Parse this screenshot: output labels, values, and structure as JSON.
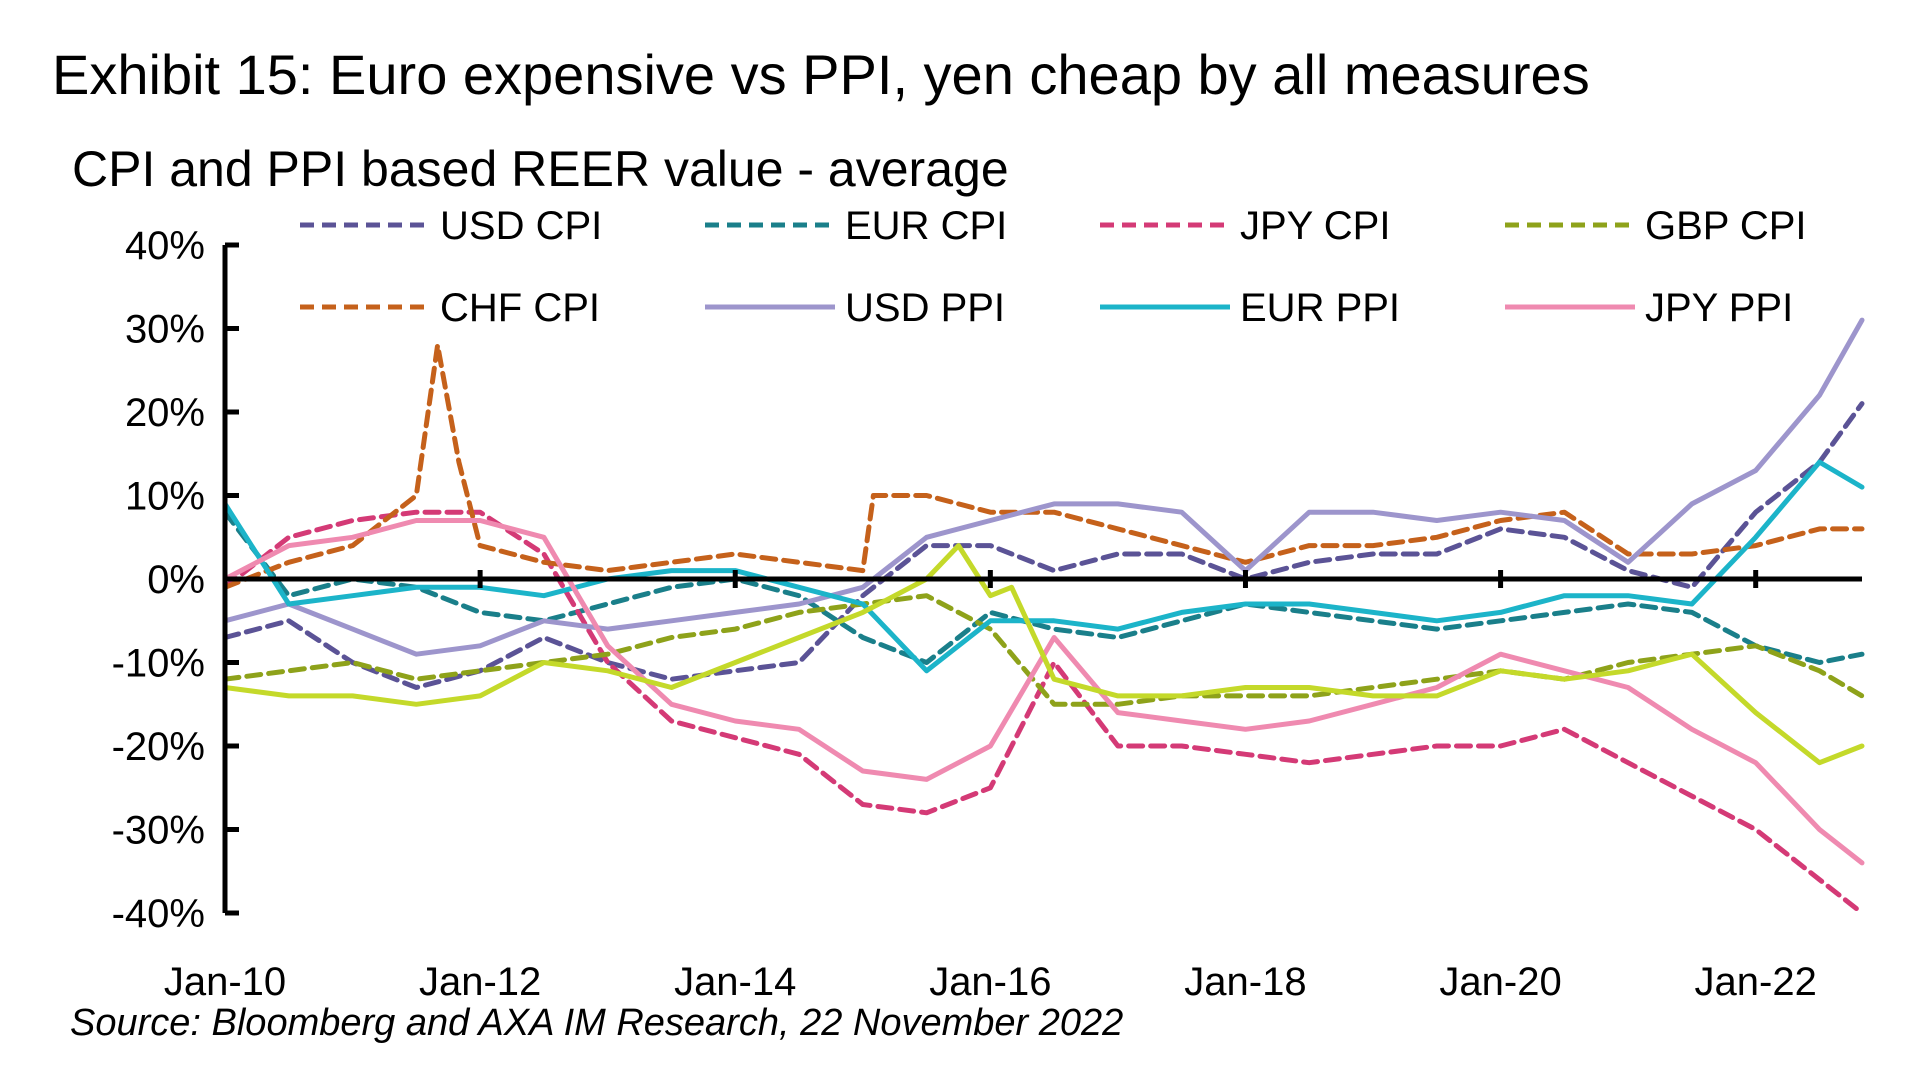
{
  "title": "Exhibit 15: Euro expensive vs PPI, yen cheap by all measures",
  "subtitle": "CPI and PPI based REER value - average",
  "source": "Source: Bloomberg and AXA IM Research, 22 November 2022",
  "chart_data": {
    "type": "line",
    "ylim": [
      -40,
      40
    ],
    "yticks": [
      40,
      30,
      20,
      10,
      0,
      -10,
      -20,
      -30,
      -40
    ],
    "ytick_labels": [
      "40%",
      "30%",
      "20%",
      "10%",
      "0%",
      "-10%",
      "-20%",
      "-30%",
      "-40%"
    ],
    "xlim": [
      "2010-01",
      "2022-11"
    ],
    "xticks": [
      "2010-01",
      "2012-01",
      "2014-01",
      "2016-01",
      "2018-01",
      "2020-01",
      "2022-01"
    ],
    "xtick_labels": [
      "Jan-10",
      "Jan-12",
      "Jan-14",
      "Jan-16",
      "Jan-18",
      "Jan-20",
      "Jan-22"
    ],
    "legend_position": "top",
    "series": [
      {
        "name": "USD CPI",
        "color": "#5b5396",
        "dash": true,
        "points": [
          [
            "2010-01",
            -7
          ],
          [
            "2010-07",
            -5
          ],
          [
            "2011-01",
            -10
          ],
          [
            "2011-07",
            -13
          ],
          [
            "2012-01",
            -11
          ],
          [
            "2012-07",
            -7
          ],
          [
            "2013-01",
            -10
          ],
          [
            "2013-07",
            -12
          ],
          [
            "2014-01",
            -11
          ],
          [
            "2014-07",
            -10
          ],
          [
            "2015-01",
            -2
          ],
          [
            "2015-07",
            4
          ],
          [
            "2016-01",
            4
          ],
          [
            "2016-07",
            1
          ],
          [
            "2017-01",
            3
          ],
          [
            "2017-07",
            3
          ],
          [
            "2018-01",
            0
          ],
          [
            "2018-07",
            2
          ],
          [
            "2019-01",
            3
          ],
          [
            "2019-07",
            3
          ],
          [
            "2020-01",
            6
          ],
          [
            "2020-07",
            5
          ],
          [
            "2021-01",
            1
          ],
          [
            "2021-07",
            -1
          ],
          [
            "2022-01",
            8
          ],
          [
            "2022-07",
            14
          ],
          [
            "2022-11",
            21
          ]
        ]
      },
      {
        "name": "EUR CPI",
        "color": "#1a7f8a",
        "dash": true,
        "points": [
          [
            "2010-01",
            8
          ],
          [
            "2010-07",
            -2
          ],
          [
            "2011-01",
            0
          ],
          [
            "2011-07",
            -1
          ],
          [
            "2012-01",
            -4
          ],
          [
            "2012-07",
            -5
          ],
          [
            "2013-01",
            -3
          ],
          [
            "2013-07",
            -1
          ],
          [
            "2014-01",
            0
          ],
          [
            "2014-07",
            -2
          ],
          [
            "2015-01",
            -7
          ],
          [
            "2015-07",
            -10
          ],
          [
            "2016-01",
            -4
          ],
          [
            "2016-07",
            -6
          ],
          [
            "2017-01",
            -7
          ],
          [
            "2017-07",
            -5
          ],
          [
            "2018-01",
            -3
          ],
          [
            "2018-07",
            -4
          ],
          [
            "2019-01",
            -5
          ],
          [
            "2019-07",
            -6
          ],
          [
            "2020-01",
            -5
          ],
          [
            "2020-07",
            -4
          ],
          [
            "2021-01",
            -3
          ],
          [
            "2021-07",
            -4
          ],
          [
            "2022-01",
            -8
          ],
          [
            "2022-07",
            -10
          ],
          [
            "2022-11",
            -9
          ]
        ]
      },
      {
        "name": "JPY CPI",
        "color": "#d43a76",
        "dash": true,
        "points": [
          [
            "2010-01",
            -1
          ],
          [
            "2010-07",
            5
          ],
          [
            "2011-01",
            7
          ],
          [
            "2011-07",
            8
          ],
          [
            "2012-01",
            8
          ],
          [
            "2012-07",
            3
          ],
          [
            "2013-01",
            -10
          ],
          [
            "2013-07",
            -17
          ],
          [
            "2014-01",
            -19
          ],
          [
            "2014-07",
            -21
          ],
          [
            "2015-01",
            -27
          ],
          [
            "2015-07",
            -28
          ],
          [
            "2016-01",
            -25
          ],
          [
            "2016-07",
            -10
          ],
          [
            "2017-01",
            -20
          ],
          [
            "2017-07",
            -20
          ],
          [
            "2018-01",
            -21
          ],
          [
            "2018-07",
            -22
          ],
          [
            "2019-01",
            -21
          ],
          [
            "2019-07",
            -20
          ],
          [
            "2020-01",
            -20
          ],
          [
            "2020-07",
            -18
          ],
          [
            "2021-01",
            -22
          ],
          [
            "2021-07",
            -26
          ],
          [
            "2022-01",
            -30
          ],
          [
            "2022-07",
            -36
          ],
          [
            "2022-11",
            -40
          ]
        ]
      },
      {
        "name": "GBP CPI",
        "color": "#8ea21a",
        "dash": true,
        "points": [
          [
            "2010-01",
            -12
          ],
          [
            "2010-07",
            -11
          ],
          [
            "2011-01",
            -10
          ],
          [
            "2011-07",
            -12
          ],
          [
            "2012-01",
            -11
          ],
          [
            "2012-07",
            -10
          ],
          [
            "2013-01",
            -9
          ],
          [
            "2013-07",
            -7
          ],
          [
            "2014-01",
            -6
          ],
          [
            "2014-07",
            -4
          ],
          [
            "2015-01",
            -3
          ],
          [
            "2015-07",
            -2
          ],
          [
            "2016-01",
            -6
          ],
          [
            "2016-07",
            -15
          ],
          [
            "2017-01",
            -15
          ],
          [
            "2017-07",
            -14
          ],
          [
            "2018-01",
            -14
          ],
          [
            "2018-07",
            -14
          ],
          [
            "2019-01",
            -13
          ],
          [
            "2019-07",
            -12
          ],
          [
            "2020-01",
            -11
          ],
          [
            "2020-07",
            -12
          ],
          [
            "2021-01",
            -10
          ],
          [
            "2021-07",
            -9
          ],
          [
            "2022-01",
            -8
          ],
          [
            "2022-07",
            -11
          ],
          [
            "2022-11",
            -14
          ]
        ]
      },
      {
        "name": "CHF CPI",
        "color": "#c5611b",
        "dash": true,
        "points": [
          [
            "2010-01",
            -1
          ],
          [
            "2010-07",
            2
          ],
          [
            "2011-01",
            4
          ],
          [
            "2011-07",
            10
          ],
          [
            "2011-09",
            28
          ],
          [
            "2011-11",
            14
          ],
          [
            "2012-01",
            4
          ],
          [
            "2012-07",
            2
          ],
          [
            "2013-01",
            1
          ],
          [
            "2013-07",
            2
          ],
          [
            "2014-01",
            3
          ],
          [
            "2014-07",
            2
          ],
          [
            "2015-01",
            1
          ],
          [
            "2015-02",
            10
          ],
          [
            "2015-07",
            10
          ],
          [
            "2016-01",
            8
          ],
          [
            "2016-07",
            8
          ],
          [
            "2017-01",
            6
          ],
          [
            "2017-07",
            4
          ],
          [
            "2018-01",
            2
          ],
          [
            "2018-07",
            4
          ],
          [
            "2019-01",
            4
          ],
          [
            "2019-07",
            5
          ],
          [
            "2020-01",
            7
          ],
          [
            "2020-07",
            8
          ],
          [
            "2021-01",
            3
          ],
          [
            "2021-07",
            3
          ],
          [
            "2022-01",
            4
          ],
          [
            "2022-07",
            6
          ],
          [
            "2022-11",
            6
          ]
        ]
      },
      {
        "name": "USD PPI",
        "color": "#9d95cc",
        "dash": false,
        "points": [
          [
            "2010-01",
            -5
          ],
          [
            "2010-07",
            -3
          ],
          [
            "2011-01",
            -6
          ],
          [
            "2011-07",
            -9
          ],
          [
            "2012-01",
            -8
          ],
          [
            "2012-07",
            -5
          ],
          [
            "2013-01",
            -6
          ],
          [
            "2013-07",
            -5
          ],
          [
            "2014-01",
            -4
          ],
          [
            "2014-07",
            -3
          ],
          [
            "2015-01",
            -1
          ],
          [
            "2015-07",
            5
          ],
          [
            "2016-01",
            7
          ],
          [
            "2016-07",
            9
          ],
          [
            "2017-01",
            9
          ],
          [
            "2017-07",
            8
          ],
          [
            "2018-01",
            1
          ],
          [
            "2018-07",
            8
          ],
          [
            "2019-01",
            8
          ],
          [
            "2019-07",
            7
          ],
          [
            "2020-01",
            8
          ],
          [
            "2020-07",
            7
          ],
          [
            "2021-01",
            2
          ],
          [
            "2021-07",
            9
          ],
          [
            "2022-01",
            13
          ],
          [
            "2022-07",
            22
          ],
          [
            "2022-11",
            31
          ]
        ]
      },
      {
        "name": "EUR PPI",
        "color": "#1cb4c9",
        "dash": false,
        "points": [
          [
            "2010-01",
            9
          ],
          [
            "2010-07",
            -3
          ],
          [
            "2011-01",
            -2
          ],
          [
            "2011-07",
            -1
          ],
          [
            "2012-01",
            -1
          ],
          [
            "2012-07",
            -2
          ],
          [
            "2013-01",
            0
          ],
          [
            "2013-07",
            1
          ],
          [
            "2014-01",
            1
          ],
          [
            "2014-07",
            -1
          ],
          [
            "2015-01",
            -3
          ],
          [
            "2015-07",
            -11
          ],
          [
            "2016-01",
            -5
          ],
          [
            "2016-07",
            -5
          ],
          [
            "2017-01",
            -6
          ],
          [
            "2017-07",
            -4
          ],
          [
            "2018-01",
            -3
          ],
          [
            "2018-07",
            -3
          ],
          [
            "2019-01",
            -4
          ],
          [
            "2019-07",
            -5
          ],
          [
            "2020-01",
            -4
          ],
          [
            "2020-07",
            -2
          ],
          [
            "2021-01",
            -2
          ],
          [
            "2021-07",
            -3
          ],
          [
            "2022-01",
            5
          ],
          [
            "2022-07",
            14
          ],
          [
            "2022-11",
            11
          ]
        ]
      },
      {
        "name": "JPY PPI",
        "color": "#ef8ab0",
        "dash": false,
        "points": [
          [
            "2010-01",
            0
          ],
          [
            "2010-07",
            4
          ],
          [
            "2011-01",
            5
          ],
          [
            "2011-07",
            7
          ],
          [
            "2012-01",
            7
          ],
          [
            "2012-07",
            5
          ],
          [
            "2013-01",
            -8
          ],
          [
            "2013-07",
            -15
          ],
          [
            "2014-01",
            -17
          ],
          [
            "2014-07",
            -18
          ],
          [
            "2015-01",
            -23
          ],
          [
            "2015-07",
            -24
          ],
          [
            "2016-01",
            -20
          ],
          [
            "2016-07",
            -7
          ],
          [
            "2017-01",
            -16
          ],
          [
            "2017-07",
            -17
          ],
          [
            "2018-01",
            -18
          ],
          [
            "2018-07",
            -17
          ],
          [
            "2019-01",
            -15
          ],
          [
            "2019-07",
            -13
          ],
          [
            "2020-01",
            -9
          ],
          [
            "2020-07",
            -11
          ],
          [
            "2021-01",
            -13
          ],
          [
            "2021-07",
            -18
          ],
          [
            "2022-01",
            -22
          ],
          [
            "2022-07",
            -30
          ],
          [
            "2022-11",
            -34
          ]
        ]
      },
      {
        "name": "",
        "color": "#c4d92a",
        "dash": false,
        "points": [
          [
            "2010-01",
            -13
          ],
          [
            "2010-07",
            -14
          ],
          [
            "2011-01",
            -14
          ],
          [
            "2011-07",
            -15
          ],
          [
            "2012-01",
            -14
          ],
          [
            "2012-07",
            -10
          ],
          [
            "2013-01",
            -11
          ],
          [
            "2013-07",
            -13
          ],
          [
            "2014-01",
            -10
          ],
          [
            "2014-07",
            -7
          ],
          [
            "2015-01",
            -4
          ],
          [
            "2015-07",
            0
          ],
          [
            "2015-10",
            4
          ],
          [
            "2016-01",
            -2
          ],
          [
            "2016-03",
            -1
          ],
          [
            "2016-07",
            -12
          ],
          [
            "2017-01",
            -14
          ],
          [
            "2017-07",
            -14
          ],
          [
            "2018-01",
            -13
          ],
          [
            "2018-07",
            -13
          ],
          [
            "2019-01",
            -14
          ],
          [
            "2019-07",
            -14
          ],
          [
            "2020-01",
            -11
          ],
          [
            "2020-07",
            -12
          ],
          [
            "2021-01",
            -11
          ],
          [
            "2021-07",
            -9
          ],
          [
            "2022-01",
            -16
          ],
          [
            "2022-07",
            -22
          ],
          [
            "2022-11",
            -20
          ]
        ]
      }
    ]
  }
}
